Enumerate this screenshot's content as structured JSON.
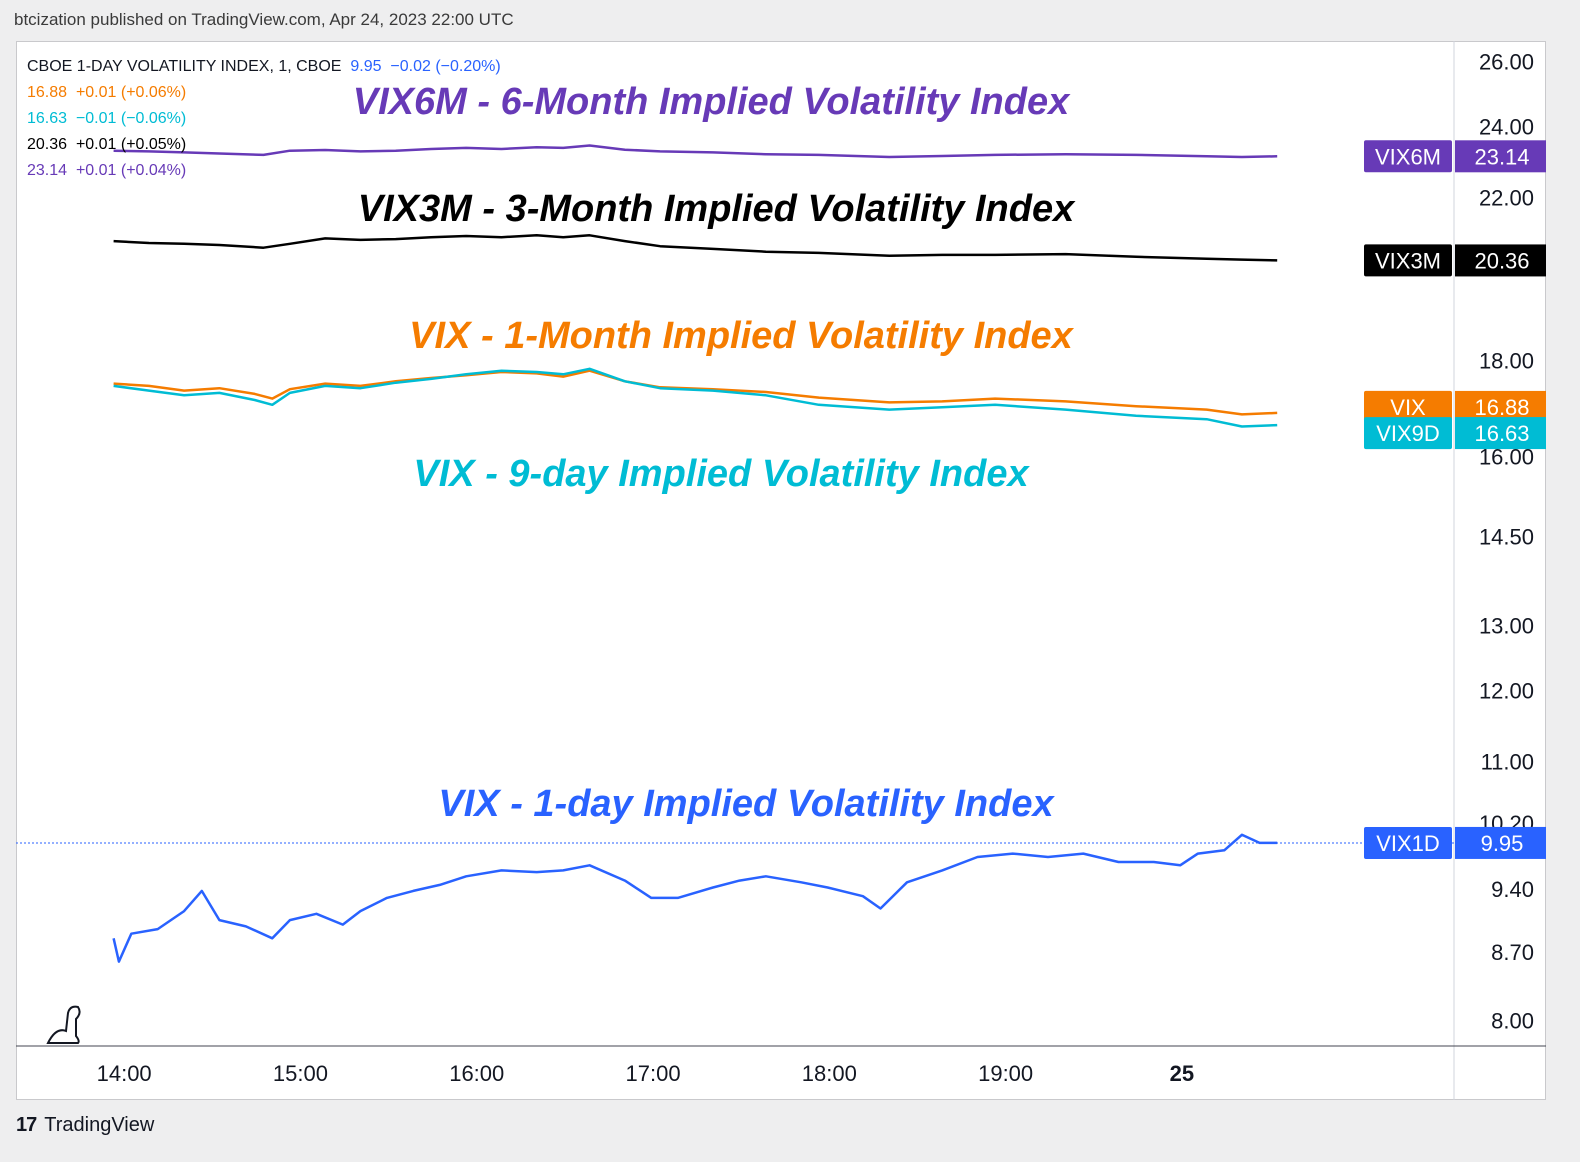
{
  "header": {
    "published_text": "btcization published on TradingView.com, Apr 24, 2023 22:00 UTC"
  },
  "legend": {
    "symbol_line": {
      "symbol": "CBOE 1-DAY VOLATILITY INDEX, 1, CBOE",
      "value": "9.95",
      "change": "−0.02 (−0.20%)",
      "color": "#2962ff"
    },
    "rows": [
      {
        "value": "16.88",
        "change": "+0.01 (+0.06%)",
        "color": "#f57c00"
      },
      {
        "value": "16.63",
        "change": "−0.01 (−0.06%)",
        "color": "#00bcd4"
      },
      {
        "value": "20.36",
        "change": "+0.01 (+0.05%)",
        "color": "#000000"
      },
      {
        "value": "23.14",
        "change": "+0.01 (+0.04%)",
        "color": "#673ab7"
      }
    ]
  },
  "annotations": {
    "vix6m": "VIX6M - 6-Month Implied Volatility Index",
    "vix3m": "VIX3M - 3-Month Implied Volatility Index",
    "vix": "VIX - 1-Month Implied Volatility Index",
    "vix9d": "VIX - 9-day Implied Volatility Index",
    "vix1d": "VIX - 1-day Implied Volatility Index"
  },
  "footer": {
    "brand": "TradingView",
    "logo_text": "17"
  },
  "chart_data": {
    "type": "line",
    "y_scale": "log",
    "ylim": [
      7.8,
      26.5
    ],
    "x_ticks": [
      "14:00",
      "15:00",
      "16:00",
      "17:00",
      "18:00",
      "19:00",
      "25"
    ],
    "y_ticks": [
      {
        "value": 26.0,
        "label": "26.00"
      },
      {
        "value": 24.0,
        "label": "24.00"
      },
      {
        "value": 22.0,
        "label": "22.00"
      },
      {
        "value": 18.0,
        "label": "18.00"
      },
      {
        "value": 16.0,
        "label": "16.00"
      },
      {
        "value": 14.5,
        "label": "14.50"
      },
      {
        "value": 13.0,
        "label": "13.00"
      },
      {
        "value": 12.0,
        "label": "12.00"
      },
      {
        "value": 11.0,
        "label": "11.00"
      },
      {
        "value": 10.2,
        "label": "10.20"
      },
      {
        "value": 9.4,
        "label": "9.40"
      },
      {
        "value": 8.7,
        "label": "8.70"
      },
      {
        "value": 8.0,
        "label": "8.00"
      }
    ],
    "time_range": [
      "13:30",
      "20:15"
    ],
    "price_line": {
      "value": 9.95,
      "style": "dotted",
      "color": "#2962ff"
    },
    "series": [
      {
        "name": "VIX6M",
        "color": "#673ab7",
        "last": "23.14",
        "values": [
          [
            13.6,
            23.3
          ],
          [
            13.8,
            23.28
          ],
          [
            14.0,
            23.25
          ],
          [
            14.2,
            23.22
          ],
          [
            14.45,
            23.18
          ],
          [
            14.6,
            23.3
          ],
          [
            14.8,
            23.32
          ],
          [
            15.0,
            23.28
          ],
          [
            15.2,
            23.3
          ],
          [
            15.4,
            23.35
          ],
          [
            15.6,
            23.38
          ],
          [
            15.8,
            23.35
          ],
          [
            16.0,
            23.4
          ],
          [
            16.15,
            23.38
          ],
          [
            16.3,
            23.45
          ],
          [
            16.5,
            23.33
          ],
          [
            16.7,
            23.28
          ],
          [
            17.0,
            23.25
          ],
          [
            17.3,
            23.2
          ],
          [
            17.6,
            23.18
          ],
          [
            18.0,
            23.12
          ],
          [
            18.3,
            23.15
          ],
          [
            18.6,
            23.18
          ],
          [
            19.0,
            23.2
          ],
          [
            19.4,
            23.18
          ],
          [
            19.8,
            23.14
          ],
          [
            20.0,
            23.12
          ],
          [
            20.2,
            23.14
          ]
        ]
      },
      {
        "name": "VIX3M",
        "color": "#000000",
        "last": "20.36",
        "values": [
          [
            13.6,
            20.85
          ],
          [
            13.8,
            20.8
          ],
          [
            14.0,
            20.78
          ],
          [
            14.2,
            20.75
          ],
          [
            14.45,
            20.68
          ],
          [
            14.6,
            20.78
          ],
          [
            14.8,
            20.92
          ],
          [
            15.0,
            20.88
          ],
          [
            15.2,
            20.9
          ],
          [
            15.4,
            20.95
          ],
          [
            15.6,
            20.98
          ],
          [
            15.8,
            20.95
          ],
          [
            16.0,
            21.0
          ],
          [
            16.15,
            20.95
          ],
          [
            16.3,
            21.0
          ],
          [
            16.5,
            20.85
          ],
          [
            16.7,
            20.72
          ],
          [
            17.0,
            20.65
          ],
          [
            17.3,
            20.58
          ],
          [
            17.6,
            20.55
          ],
          [
            18.0,
            20.48
          ],
          [
            18.3,
            20.5
          ],
          [
            18.6,
            20.5
          ],
          [
            19.0,
            20.52
          ],
          [
            19.4,
            20.45
          ],
          [
            19.8,
            20.4
          ],
          [
            20.0,
            20.38
          ],
          [
            20.2,
            20.36
          ]
        ]
      },
      {
        "name": "VIX",
        "color": "#f57c00",
        "last": "16.88",
        "values": [
          [
            13.6,
            17.5
          ],
          [
            13.8,
            17.45
          ],
          [
            14.0,
            17.35
          ],
          [
            14.2,
            17.4
          ],
          [
            14.4,
            17.28
          ],
          [
            14.5,
            17.18
          ],
          [
            14.6,
            17.38
          ],
          [
            14.8,
            17.5
          ],
          [
            15.0,
            17.45
          ],
          [
            15.2,
            17.55
          ],
          [
            15.4,
            17.62
          ],
          [
            15.6,
            17.68
          ],
          [
            15.8,
            17.75
          ],
          [
            16.0,
            17.72
          ],
          [
            16.15,
            17.65
          ],
          [
            16.3,
            17.78
          ],
          [
            16.5,
            17.55
          ],
          [
            16.7,
            17.42
          ],
          [
            17.0,
            17.38
          ],
          [
            17.3,
            17.32
          ],
          [
            17.6,
            17.2
          ],
          [
            18.0,
            17.1
          ],
          [
            18.3,
            17.12
          ],
          [
            18.6,
            17.18
          ],
          [
            19.0,
            17.12
          ],
          [
            19.4,
            17.02
          ],
          [
            19.8,
            16.95
          ],
          [
            20.0,
            16.85
          ],
          [
            20.2,
            16.88
          ]
        ]
      },
      {
        "name": "VIX9D",
        "color": "#00bcd4",
        "last": "16.63",
        "values": [
          [
            13.6,
            17.45
          ],
          [
            13.8,
            17.35
          ],
          [
            14.0,
            17.25
          ],
          [
            14.2,
            17.3
          ],
          [
            14.4,
            17.15
          ],
          [
            14.5,
            17.05
          ],
          [
            14.6,
            17.3
          ],
          [
            14.8,
            17.45
          ],
          [
            15.0,
            17.4
          ],
          [
            15.2,
            17.52
          ],
          [
            15.4,
            17.6
          ],
          [
            15.6,
            17.7
          ],
          [
            15.8,
            17.78
          ],
          [
            16.0,
            17.75
          ],
          [
            16.15,
            17.7
          ],
          [
            16.3,
            17.82
          ],
          [
            16.5,
            17.55
          ],
          [
            16.7,
            17.4
          ],
          [
            17.0,
            17.35
          ],
          [
            17.3,
            17.25
          ],
          [
            17.6,
            17.05
          ],
          [
            18.0,
            16.95
          ],
          [
            18.3,
            17.0
          ],
          [
            18.6,
            17.05
          ],
          [
            19.0,
            16.95
          ],
          [
            19.4,
            16.82
          ],
          [
            19.8,
            16.75
          ],
          [
            20.0,
            16.6
          ],
          [
            20.2,
            16.63
          ]
        ]
      },
      {
        "name": "VIX1D",
        "color": "#2962ff",
        "last": "9.95",
        "values": [
          [
            13.6,
            8.85
          ],
          [
            13.63,
            8.6
          ],
          [
            13.7,
            8.9
          ],
          [
            13.85,
            8.95
          ],
          [
            14.0,
            9.15
          ],
          [
            14.1,
            9.38
          ],
          [
            14.2,
            9.05
          ],
          [
            14.35,
            8.98
          ],
          [
            14.5,
            8.85
          ],
          [
            14.6,
            9.05
          ],
          [
            14.75,
            9.12
          ],
          [
            14.9,
            9.0
          ],
          [
            15.0,
            9.15
          ],
          [
            15.15,
            9.3
          ],
          [
            15.3,
            9.38
          ],
          [
            15.45,
            9.45
          ],
          [
            15.6,
            9.55
          ],
          [
            15.8,
            9.62
          ],
          [
            16.0,
            9.6
          ],
          [
            16.15,
            9.62
          ],
          [
            16.3,
            9.68
          ],
          [
            16.5,
            9.5
          ],
          [
            16.65,
            9.3
          ],
          [
            16.8,
            9.3
          ],
          [
            17.0,
            9.42
          ],
          [
            17.15,
            9.5
          ],
          [
            17.3,
            9.55
          ],
          [
            17.5,
            9.48
          ],
          [
            17.65,
            9.42
          ],
          [
            17.85,
            9.32
          ],
          [
            17.95,
            9.18
          ],
          [
            18.1,
            9.48
          ],
          [
            18.3,
            9.62
          ],
          [
            18.5,
            9.78
          ],
          [
            18.7,
            9.82
          ],
          [
            18.9,
            9.78
          ],
          [
            19.1,
            9.82
          ],
          [
            19.3,
            9.72
          ],
          [
            19.5,
            9.72
          ],
          [
            19.65,
            9.68
          ],
          [
            19.75,
            9.82
          ],
          [
            19.9,
            9.86
          ],
          [
            20.0,
            10.05
          ],
          [
            20.1,
            9.95
          ],
          [
            20.2,
            9.95
          ]
        ]
      }
    ]
  }
}
